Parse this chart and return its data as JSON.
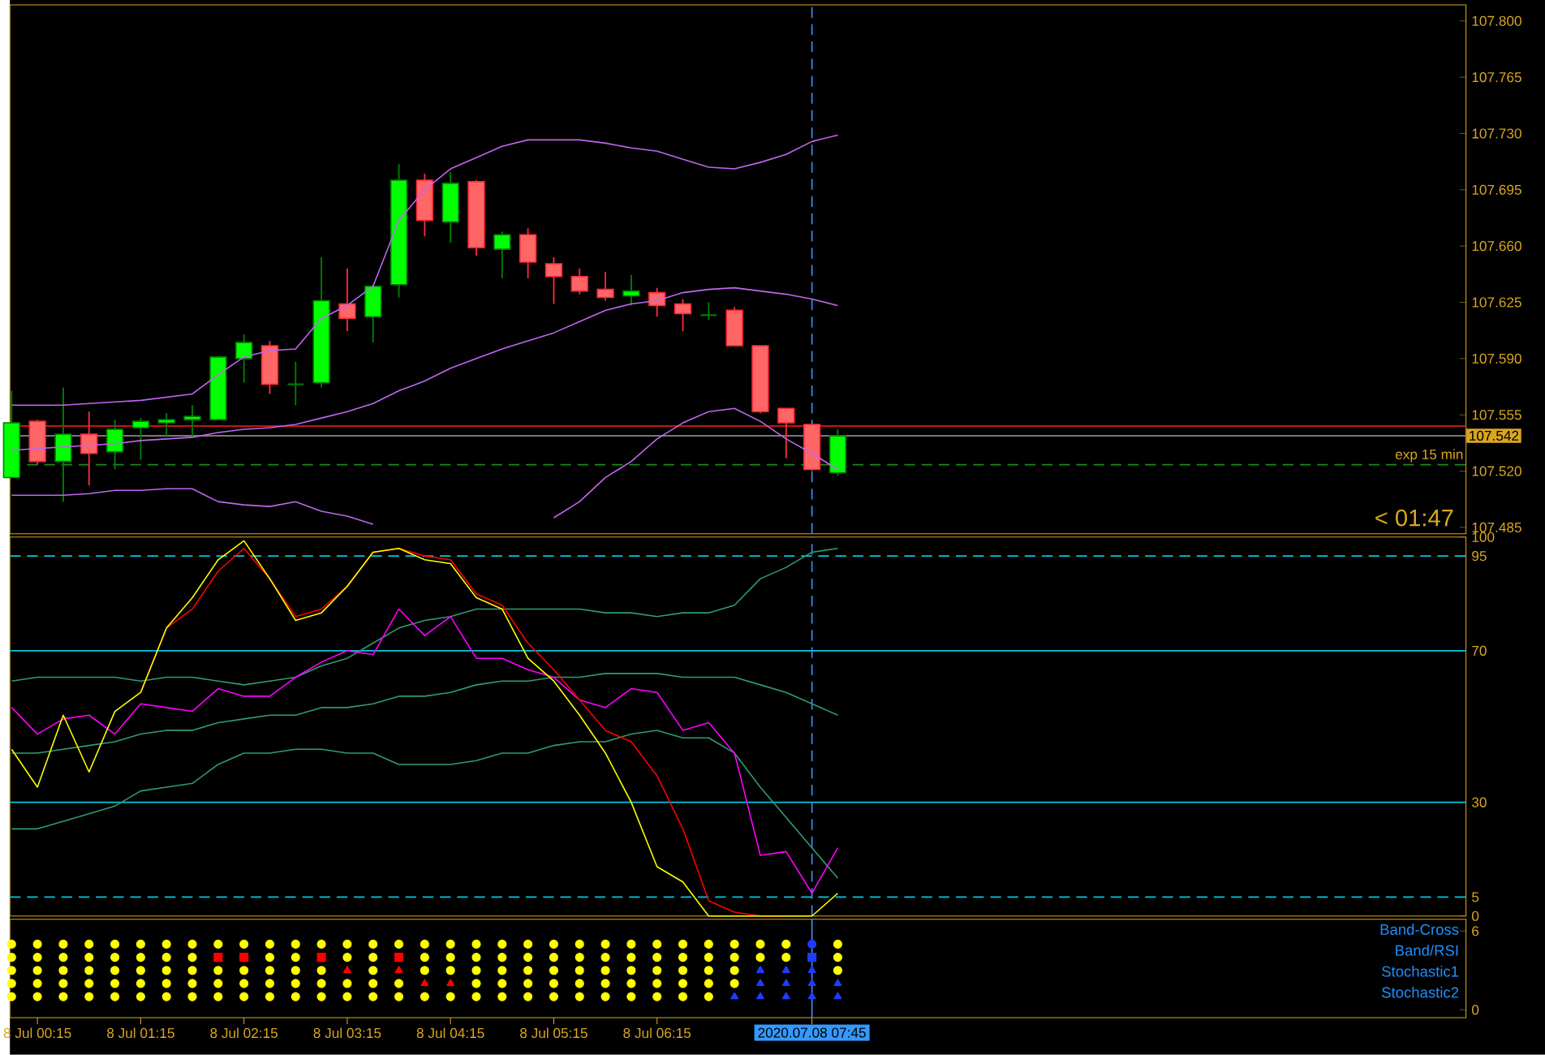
{
  "chart_data": [
    {
      "type": "candlestick",
      "tick_labels": "y",
      "x": [
        "2020-07-08T00:00",
        "2020-07-08T00:15",
        "2020-07-08T00:30",
        "2020-07-08T00:45",
        "2020-07-08T01:00",
        "2020-07-08T01:15",
        "2020-07-08T01:30",
        "2020-07-08T01:45",
        "2020-07-08T02:00",
        "2020-07-08T02:15",
        "2020-07-08T02:30",
        "2020-07-08T02:45",
        "2020-07-08T03:00",
        "2020-07-08T03:15",
        "2020-07-08T03:30",
        "2020-07-08T03:45",
        "2020-07-08T04:00",
        "2020-07-08T04:15",
        "2020-07-08T04:30",
        "2020-07-08T04:45",
        "2020-07-08T05:00",
        "2020-07-08T05:15",
        "2020-07-08T05:30",
        "2020-07-08T05:45",
        "2020-07-08T06:00",
        "2020-07-08T06:15",
        "2020-07-08T06:30",
        "2020-07-08T06:45",
        "2020-07-08T07:00",
        "2020-07-08T07:15",
        "2020-07-08T07:30",
        "2020-07-08T07:45",
        "2020-07-08T08:00"
      ],
      "xlim": [
        "2020-07-07T23:59",
        "2020-07-08T14:05"
      ],
      "ohlc": [
        [
          107.516,
          107.57,
          107.516,
          107.55
        ],
        [
          107.551,
          107.552,
          107.524,
          107.526
        ],
        [
          107.526,
          107.572,
          107.501,
          107.543
        ],
        [
          107.543,
          107.557,
          107.511,
          107.531
        ],
        [
          107.532,
          107.552,
          107.521,
          107.546
        ],
        [
          107.547,
          107.553,
          107.527,
          107.551
        ],
        [
          107.55,
          107.556,
          107.541,
          107.552
        ],
        [
          107.552,
          107.561,
          107.541,
          107.554
        ],
        [
          107.552,
          107.591,
          107.552,
          107.591
        ],
        [
          107.59,
          107.605,
          107.575,
          107.6
        ],
        [
          107.598,
          107.601,
          107.568,
          107.574
        ],
        [
          107.574,
          107.588,
          107.561,
          107.574
        ],
        [
          107.575,
          107.653,
          107.572,
          107.626
        ],
        [
          107.624,
          107.646,
          107.607,
          107.615
        ],
        [
          107.616,
          107.636,
          107.6,
          107.635
        ],
        [
          107.636,
          107.711,
          107.628,
          107.701
        ],
        [
          107.701,
          107.705,
          107.666,
          107.676
        ],
        [
          107.675,
          107.706,
          107.662,
          107.699
        ],
        [
          107.7,
          107.701,
          107.654,
          107.659
        ],
        [
          107.658,
          107.669,
          107.64,
          107.667
        ],
        [
          107.667,
          107.671,
          107.64,
          107.65
        ],
        [
          107.649,
          107.653,
          107.624,
          107.641
        ],
        [
          107.641,
          107.646,
          107.63,
          107.632
        ],
        [
          107.633,
          107.644,
          107.626,
          107.628
        ],
        [
          107.629,
          107.642,
          107.623,
          107.632
        ],
        [
          107.631,
          107.634,
          107.616,
          107.623
        ],
        [
          107.624,
          107.627,
          107.607,
          107.618
        ],
        [
          107.617,
          107.625,
          107.614,
          107.617
        ],
        [
          107.62,
          107.622,
          107.598,
          107.598
        ],
        [
          107.598,
          107.598,
          107.556,
          107.557
        ],
        [
          107.559,
          107.559,
          107.528,
          107.55
        ],
        [
          107.549,
          107.549,
          107.52,
          107.521
        ],
        [
          107.519,
          107.546,
          107.517,
          107.542
        ]
      ],
      "series": [
        {
          "type": "line",
          "color": "#c066f0",
          "values": [
            107.561,
            107.561,
            107.561,
            107.562,
            107.563,
            107.564,
            107.566,
            107.568,
            107.58,
            107.591,
            107.595,
            107.596,
            107.615,
            107.623,
            107.635,
            107.676,
            107.695,
            107.708,
            107.715,
            107.722,
            107.726,
            107.726,
            107.726,
            107.724,
            107.721,
            107.719,
            107.714,
            107.709,
            107.708,
            107.712,
            107.717,
            107.725,
            107.729
          ]
        },
        {
          "type": "line",
          "color": "#c066f0",
          "values": [
            107.533,
            107.534,
            107.535,
            107.536,
            107.537,
            107.539,
            107.54,
            107.541,
            107.544,
            107.546,
            107.547,
            107.549,
            107.553,
            107.557,
            107.562,
            107.57,
            107.576,
            107.584,
            107.59,
            107.596,
            107.601,
            107.606,
            107.613,
            107.62,
            107.624,
            107.626,
            107.631,
            107.633,
            107.634,
            107.632,
            107.63,
            107.627,
            107.623
          ]
        },
        {
          "type": "line",
          "color": "#c066f0",
          "values": [
            107.505,
            107.505,
            107.505,
            107.506,
            107.508,
            107.508,
            107.509,
            107.509,
            107.501,
            107.499,
            107.498,
            107.501,
            107.495,
            107.492,
            107.487,
            null,
            null,
            null,
            null,
            null,
            null,
            107.491,
            107.501,
            107.516,
            107.526,
            107.54,
            107.55,
            107.557,
            107.559,
            107.551,
            107.54,
            107.531,
            107.521
          ]
        }
      ],
      "ylim": [
        107.481,
        107.81
      ],
      "yticks": [
        {
          "value": 107.485,
          "label": "107.485"
        },
        {
          "value": 107.52,
          "label": "107.520"
        },
        {
          "value": 107.555,
          "label": "107.555"
        },
        {
          "value": 107.59,
          "label": "107.590"
        },
        {
          "value": 107.625,
          "label": "107.625"
        },
        {
          "value": 107.66,
          "label": "107.660"
        },
        {
          "value": 107.695,
          "label": "107.695"
        },
        {
          "value": 107.73,
          "label": "107.730"
        },
        {
          "value": 107.765,
          "label": "107.765"
        },
        {
          "value": 107.8,
          "label": "107.800"
        }
      ],
      "ref_lines": [
        {
          "axis": "y",
          "value": 107.548,
          "color": "#ff2020"
        },
        {
          "axis": "y",
          "value": 107.542,
          "color": "#a0a0a0",
          "label": "107.542"
        },
        {
          "axis": "y",
          "value": 107.524,
          "color": "#1a8a1a",
          "line_style": "dashed",
          "label": "exp 15 min"
        },
        {
          "axis": "x",
          "value": "2020-07-08T07:45",
          "color": "#3399ff",
          "line_style": "dashed"
        }
      ],
      "annotations": [
        "< 01:47"
      ]
    },
    {
      "type": "line",
      "tick_labels": "y",
      "x": [
        "2020-07-08T00:00",
        "2020-07-08T00:15",
        "2020-07-08T00:30",
        "2020-07-08T00:45",
        "2020-07-08T01:00",
        "2020-07-08T01:15",
        "2020-07-08T01:30",
        "2020-07-08T01:45",
        "2020-07-08T02:00",
        "2020-07-08T02:15",
        "2020-07-08T02:30",
        "2020-07-08T02:45",
        "2020-07-08T03:00",
        "2020-07-08T03:15",
        "2020-07-08T03:30",
        "2020-07-08T03:45",
        "2020-07-08T04:00",
        "2020-07-08T04:15",
        "2020-07-08T04:30",
        "2020-07-08T04:45",
        "2020-07-08T05:00",
        "2020-07-08T05:15",
        "2020-07-08T05:30",
        "2020-07-08T05:45",
        "2020-07-08T06:00",
        "2020-07-08T06:15",
        "2020-07-08T06:30",
        "2020-07-08T06:45",
        "2020-07-08T07:00",
        "2020-07-08T07:15",
        "2020-07-08T07:30",
        "2020-07-08T07:45",
        "2020-07-08T08:00"
      ],
      "xlim": [
        "2020-07-07T23:59",
        "2020-07-08T14:05"
      ],
      "series": [
        {
          "color": "#2e9d6e",
          "values": [
            62,
            63,
            63,
            63,
            63,
            62,
            63,
            63,
            62,
            61,
            62,
            63,
            66,
            68,
            72,
            76,
            78,
            79,
            81,
            81,
            81,
            81,
            81,
            80,
            80,
            79,
            80,
            80,
            82,
            89,
            92,
            96,
            97
          ]
        },
        {
          "color": "#2e9d6e",
          "values": [
            43,
            43,
            44,
            45,
            46,
            48,
            49,
            49,
            51,
            52,
            53,
            53,
            55,
            55,
            56,
            58,
            58,
            59,
            61,
            62,
            62,
            63,
            63,
            64,
            64,
            64,
            63,
            63,
            63,
            61,
            59,
            56,
            53
          ]
        },
        {
          "color": "#2e9d6e",
          "values": [
            23,
            23,
            25,
            27,
            29,
            33,
            34,
            35,
            40,
            43,
            43,
            44,
            44,
            43,
            43,
            40,
            40,
            40,
            41,
            43,
            43,
            45,
            46,
            46,
            48,
            49,
            47,
            47,
            43,
            34,
            26,
            18,
            10
          ]
        },
        {
          "color": "#ff00ff",
          "values": [
            55,
            48,
            52,
            53,
            48,
            56,
            55,
            54,
            60,
            58,
            58,
            63,
            67,
            70,
            69,
            81,
            74,
            79,
            68,
            68,
            65,
            63,
            57,
            55,
            60,
            59,
            49,
            51,
            43,
            16,
            17,
            6,
            18
          ]
        },
        {
          "color": "#ff0000",
          "values": [
            null,
            null,
            null,
            null,
            null,
            59,
            76,
            81,
            91,
            97,
            89,
            79,
            81,
            87,
            96,
            97,
            95,
            94,
            85,
            82,
            72,
            65,
            57,
            49,
            46,
            37,
            23,
            4,
            1,
            0,
            0,
            null,
            null
          ]
        },
        {
          "color": "#ffff00",
          "values": [
            44,
            34,
            53,
            38,
            54,
            59,
            76,
            84,
            94,
            99,
            89,
            78,
            80,
            87,
            96,
            97,
            94,
            93,
            84,
            81,
            68,
            62,
            53,
            43,
            30,
            13,
            9,
            0,
            0,
            0,
            0,
            0,
            6
          ]
        }
      ],
      "ylim": [
        0,
        100
      ],
      "yticks": [
        0,
        5,
        30,
        70,
        95,
        100
      ],
      "ref_lines": [
        {
          "axis": "y",
          "value": 95,
          "color": "#00c8e0",
          "line_style": "dashed"
        },
        {
          "axis": "y",
          "value": 70,
          "color": "#00c8e0"
        },
        {
          "axis": "y",
          "value": 30,
          "color": "#00c8e0"
        },
        {
          "axis": "y",
          "value": 5,
          "color": "#00c8e0",
          "line_style": "dashed"
        },
        {
          "axis": "x",
          "value": "2020-07-08T07:45",
          "color": "#3399ff",
          "line_style": "dashed"
        }
      ]
    },
    {
      "type": "scatter",
      "series": [
        {
          "color": "#ffff00",
          "marker": "circle",
          "values": [
            5,
            5,
            5,
            5,
            5,
            5,
            5,
            5,
            5,
            5,
            5,
            5,
            5,
            5,
            5,
            5,
            5,
            5,
            5,
            5,
            5,
            5,
            5,
            5,
            5,
            5,
            5,
            5,
            5,
            5,
            5,
            null,
            5
          ]
        },
        {
          "color": "#ffff00",
          "marker": "circle",
          "values": [
            4,
            4,
            4,
            4,
            4,
            4,
            4,
            4,
            null,
            null,
            4,
            4,
            null,
            4,
            4,
            null,
            4,
            4,
            4,
            4,
            4,
            4,
            4,
            4,
            4,
            4,
            4,
            4,
            4,
            4,
            4,
            null,
            4
          ]
        },
        {
          "color": "#ffff00",
          "marker": "circle",
          "values": [
            3,
            3,
            3,
            3,
            3,
            3,
            3,
            3,
            3,
            3,
            3,
            3,
            3,
            null,
            3,
            null,
            3,
            3,
            3,
            3,
            3,
            3,
            3,
            3,
            3,
            3,
            3,
            3,
            3,
            null,
            null,
            null,
            3
          ]
        },
        {
          "color": "#ffff00",
          "marker": "circle",
          "values": [
            2,
            2,
            2,
            2,
            2,
            2,
            2,
            2,
            2,
            2,
            2,
            2,
            2,
            2,
            2,
            2,
            null,
            null,
            2,
            2,
            2,
            2,
            2,
            2,
            2,
            2,
            2,
            2,
            2,
            null,
            null,
            null,
            null
          ]
        },
        {
          "color": "#ffff00",
          "marker": "circle",
          "values": [
            1,
            1,
            1,
            1,
            1,
            1,
            1,
            1,
            1,
            1,
            1,
            1,
            1,
            1,
            1,
            1,
            1,
            1,
            1,
            1,
            1,
            1,
            1,
            1,
            1,
            1,
            1,
            1,
            null,
            null,
            null,
            null,
            null
          ]
        },
        {
          "color": "#ff0000",
          "marker": "square",
          "values": [
            null,
            null,
            null,
            null,
            null,
            null,
            null,
            null,
            4,
            4,
            null,
            null,
            4,
            null,
            null,
            4,
            null,
            null,
            null,
            null,
            null,
            null,
            null,
            null,
            null,
            null,
            null,
            null,
            null,
            null,
            null,
            null,
            null
          ]
        },
        {
          "color": "#ff0000",
          "marker": "triangle",
          "values": [
            null,
            null,
            null,
            null,
            null,
            null,
            null,
            null,
            null,
            null,
            null,
            null,
            null,
            3,
            null,
            3,
            2,
            2,
            null,
            null,
            null,
            null,
            null,
            null,
            null,
            null,
            null,
            null,
            null,
            null,
            null,
            null,
            null
          ]
        },
        {
          "color": "#1e3cff",
          "marker": "triangle",
          "values": [
            null,
            null,
            null,
            null,
            null,
            null,
            null,
            null,
            null,
            null,
            null,
            null,
            null,
            null,
            null,
            null,
            null,
            null,
            null,
            null,
            null,
            null,
            null,
            null,
            null,
            null,
            null,
            null,
            null,
            3,
            3,
            3,
            null
          ]
        },
        {
          "color": "#1e3cff",
          "marker": "triangle",
          "values": [
            null,
            null,
            null,
            null,
            null,
            null,
            null,
            null,
            null,
            null,
            null,
            null,
            null,
            null,
            null,
            null,
            null,
            null,
            null,
            null,
            null,
            null,
            null,
            null,
            null,
            null,
            null,
            null,
            null,
            2,
            2,
            2,
            2
          ]
        },
        {
          "color": "#1e3cff",
          "marker": "triangle",
          "values": [
            null,
            null,
            null,
            null,
            null,
            null,
            null,
            null,
            null,
            null,
            null,
            null,
            null,
            null,
            null,
            null,
            null,
            null,
            null,
            null,
            null,
            null,
            null,
            null,
            null,
            null,
            null,
            null,
            1,
            1,
            1,
            1,
            1
          ]
        },
        {
          "color": "#1e3cff",
          "marker": "square",
          "values": [
            null,
            null,
            null,
            null,
            null,
            null,
            null,
            null,
            null,
            null,
            null,
            null,
            null,
            null,
            null,
            null,
            null,
            null,
            null,
            null,
            null,
            null,
            null,
            null,
            null,
            null,
            null,
            null,
            null,
            null,
            null,
            4,
            null
          ]
        },
        {
          "color": "#1e3cff",
          "marker": "circle",
          "values": [
            null,
            null,
            null,
            null,
            null,
            null,
            null,
            null,
            null,
            null,
            null,
            null,
            null,
            null,
            null,
            null,
            null,
            null,
            null,
            null,
            null,
            null,
            null,
            null,
            null,
            null,
            null,
            null,
            null,
            null,
            null,
            5,
            null
          ]
        }
      ],
      "x": [
        "2020-07-08T00:00",
        "2020-07-08T00:15",
        "2020-07-08T00:30",
        "2020-07-08T00:45",
        "2020-07-08T01:00",
        "2020-07-08T01:15",
        "2020-07-08T01:30",
        "2020-07-08T01:45",
        "2020-07-08T02:00",
        "2020-07-08T02:15",
        "2020-07-08T02:30",
        "2020-07-08T02:45",
        "2020-07-08T03:00",
        "2020-07-08T03:15",
        "2020-07-08T03:30",
        "2020-07-08T03:45",
        "2020-07-08T04:00",
        "2020-07-08T04:15",
        "2020-07-08T04:30",
        "2020-07-08T04:45",
        "2020-07-08T05:00",
        "2020-07-08T05:15",
        "2020-07-08T05:30",
        "2020-07-08T05:45",
        "2020-07-08T06:00",
        "2020-07-08T06:15",
        "2020-07-08T06:30",
        "2020-07-08T06:45",
        "2020-07-08T07:00",
        "2020-07-08T07:15",
        "2020-07-08T07:30",
        "2020-07-08T07:45",
        "2020-07-08T08:00"
      ],
      "xlim": [
        "2020-07-07T23:59",
        "2020-07-08T14:05"
      ],
      "xticks": [
        {
          "value": "2020-07-08T00:15",
          "label": "8 Jul 00:15"
        },
        {
          "value": "2020-07-08T01:15",
          "label": "8 Jul 01:15"
        },
        {
          "value": "2020-07-08T02:15",
          "label": "8 Jul 02:15"
        },
        {
          "value": "2020-07-08T03:15",
          "label": "8 Jul 03:15"
        },
        {
          "value": "2020-07-08T04:15",
          "label": "8 Jul 04:15"
        },
        {
          "value": "2020-07-08T05:15",
          "label": "8 Jul 05:15"
        },
        {
          "value": "2020-07-08T06:15",
          "label": "8 Jul 06:15"
        },
        {
          "value": "2020-07-08T07:45",
          "label": "2020.07.08 07:45"
        }
      ],
      "ylim": [
        -0.6,
        6.9
      ],
      "yticks": [
        0,
        6
      ],
      "ref_lines": [
        {
          "axis": "x",
          "value": "2020-07-08T07:45",
          "color": "#3399ff"
        }
      ],
      "annotations": [
        "Band-Cross",
        "Band/RSI",
        "Stochastic1",
        "Stochastic2"
      ]
    }
  ]
}
